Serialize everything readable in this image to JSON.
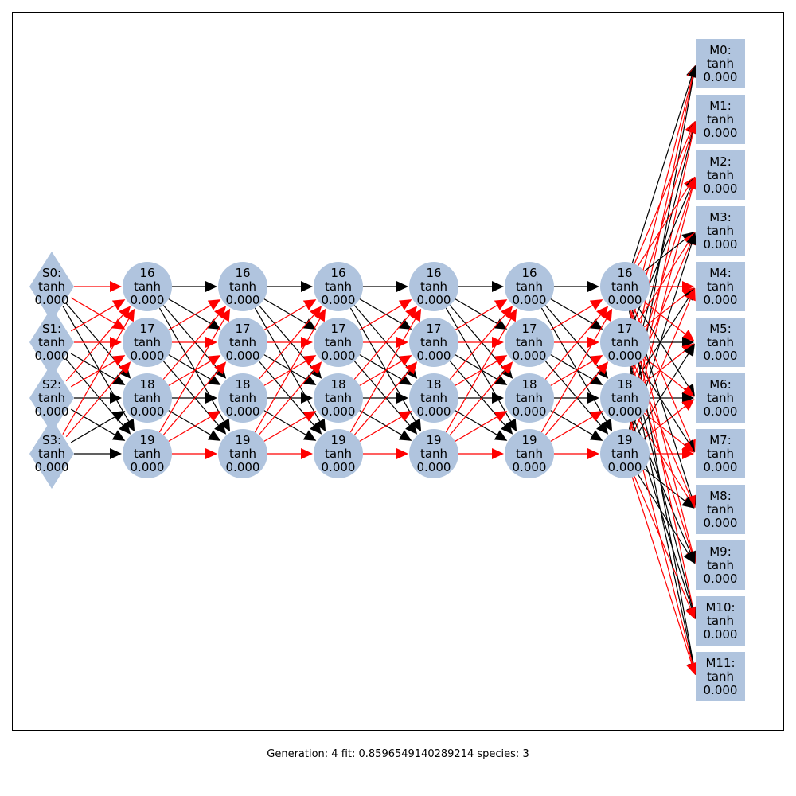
{
  "colors": {
    "node_fill": "#b0c4de",
    "edge_positive": "#000000",
    "edge_negative": "#ff0000",
    "frame": "#000000"
  },
  "network": {
    "sensors": [
      {
        "id": "S0",
        "label": "S0:",
        "activation": "tanh",
        "value": "0.000"
      },
      {
        "id": "S1",
        "label": "S1:",
        "activation": "tanh",
        "value": "0.000"
      },
      {
        "id": "S2",
        "label": "S2:",
        "activation": "tanh",
        "value": "0.000"
      },
      {
        "id": "S3",
        "label": "S3:",
        "activation": "tanh",
        "value": "0.000"
      }
    ],
    "hidden_layers": [
      {
        "nodes": [
          {
            "label": "16",
            "activation": "tanh",
            "value": "0.000"
          },
          {
            "label": "17",
            "activation": "tanh",
            "value": "0.000"
          },
          {
            "label": "18",
            "activation": "tanh",
            "value": "0.000"
          },
          {
            "label": "19",
            "activation": "tanh",
            "value": "0.000"
          }
        ]
      },
      {
        "nodes": [
          {
            "label": "16",
            "activation": "tanh",
            "value": "0.000"
          },
          {
            "label": "17",
            "activation": "tanh",
            "value": "0.000"
          },
          {
            "label": "18",
            "activation": "tanh",
            "value": "0.000"
          },
          {
            "label": "19",
            "activation": "tanh",
            "value": "0.000"
          }
        ]
      },
      {
        "nodes": [
          {
            "label": "16",
            "activation": "tanh",
            "value": "0.000"
          },
          {
            "label": "17",
            "activation": "tanh",
            "value": "0.000"
          },
          {
            "label": "18",
            "activation": "tanh",
            "value": "0.000"
          },
          {
            "label": "19",
            "activation": "tanh",
            "value": "0.000"
          }
        ]
      },
      {
        "nodes": [
          {
            "label": "16",
            "activation": "tanh",
            "value": "0.000"
          },
          {
            "label": "17",
            "activation": "tanh",
            "value": "0.000"
          },
          {
            "label": "18",
            "activation": "tanh",
            "value": "0.000"
          },
          {
            "label": "19",
            "activation": "tanh",
            "value": "0.000"
          }
        ]
      },
      {
        "nodes": [
          {
            "label": "16",
            "activation": "tanh",
            "value": "0.000"
          },
          {
            "label": "17",
            "activation": "tanh",
            "value": "0.000"
          },
          {
            "label": "18",
            "activation": "tanh",
            "value": "0.000"
          },
          {
            "label": "19",
            "activation": "tanh",
            "value": "0.000"
          }
        ]
      },
      {
        "nodes": [
          {
            "label": "16",
            "activation": "tanh",
            "value": "0.000"
          },
          {
            "label": "17",
            "activation": "tanh",
            "value": "0.000"
          },
          {
            "label": "18",
            "activation": "tanh",
            "value": "0.000"
          },
          {
            "label": "19",
            "activation": "tanh",
            "value": "0.000"
          }
        ]
      }
    ],
    "motors": [
      {
        "id": "M0",
        "label": "M0:",
        "activation": "tanh",
        "value": "0.000"
      },
      {
        "id": "M1",
        "label": "M1:",
        "activation": "tanh",
        "value": "0.000"
      },
      {
        "id": "M2",
        "label": "M2:",
        "activation": "tanh",
        "value": "0.000"
      },
      {
        "id": "M3",
        "label": "M3:",
        "activation": "tanh",
        "value": "0.000"
      },
      {
        "id": "M4",
        "label": "M4:",
        "activation": "tanh",
        "value": "0.000"
      },
      {
        "id": "M5",
        "label": "M5:",
        "activation": "tanh",
        "value": "0.000"
      },
      {
        "id": "M6",
        "label": "M6:",
        "activation": "tanh",
        "value": "0.000"
      },
      {
        "id": "M7",
        "label": "M7:",
        "activation": "tanh",
        "value": "0.000"
      },
      {
        "id": "M8",
        "label": "M8:",
        "activation": "tanh",
        "value": "0.000"
      },
      {
        "id": "M9",
        "label": "M9:",
        "activation": "tanh",
        "value": "0.000"
      },
      {
        "id": "M10",
        "label": "M10:",
        "activation": "tanh",
        "value": "0.000"
      },
      {
        "id": "M11",
        "label": "M11:",
        "activation": "tanh",
        "value": "0.000"
      }
    ],
    "input_edges": [
      {
        "from": 0,
        "to": 0,
        "sign": "negative"
      },
      {
        "from": 0,
        "to": 1,
        "sign": "negative"
      },
      {
        "from": 0,
        "to": 2,
        "sign": "positive"
      },
      {
        "from": 0,
        "to": 3,
        "sign": "positive"
      },
      {
        "from": 1,
        "to": 0,
        "sign": "negative"
      },
      {
        "from": 1,
        "to": 1,
        "sign": "negative"
      },
      {
        "from": 1,
        "to": 2,
        "sign": "positive"
      },
      {
        "from": 1,
        "to": 3,
        "sign": "positive"
      },
      {
        "from": 2,
        "to": 0,
        "sign": "negative"
      },
      {
        "from": 2,
        "to": 1,
        "sign": "negative"
      },
      {
        "from": 2,
        "to": 2,
        "sign": "positive"
      },
      {
        "from": 2,
        "to": 3,
        "sign": "positive"
      },
      {
        "from": 3,
        "to": 0,
        "sign": "negative"
      },
      {
        "from": 3,
        "to": 1,
        "sign": "negative"
      },
      {
        "from": 3,
        "to": 2,
        "sign": "positive"
      },
      {
        "from": 3,
        "to": 3,
        "sign": "positive"
      }
    ],
    "hidden_edges": [
      {
        "from": 0,
        "to": 0,
        "sign": "positive"
      },
      {
        "from": 0,
        "to": 1,
        "sign": "positive"
      },
      {
        "from": 0,
        "to": 2,
        "sign": "positive"
      },
      {
        "from": 0,
        "to": 3,
        "sign": "positive"
      },
      {
        "from": 1,
        "to": 0,
        "sign": "negative"
      },
      {
        "from": 1,
        "to": 1,
        "sign": "negative"
      },
      {
        "from": 1,
        "to": 2,
        "sign": "positive"
      },
      {
        "from": 1,
        "to": 3,
        "sign": "positive"
      },
      {
        "from": 2,
        "to": 0,
        "sign": "negative"
      },
      {
        "from": 2,
        "to": 1,
        "sign": "negative"
      },
      {
        "from": 2,
        "to": 2,
        "sign": "positive"
      },
      {
        "from": 2,
        "to": 3,
        "sign": "positive"
      },
      {
        "from": 3,
        "to": 0,
        "sign": "negative"
      },
      {
        "from": 3,
        "to": 1,
        "sign": "negative"
      },
      {
        "from": 3,
        "to": 2,
        "sign": "negative"
      },
      {
        "from": 3,
        "to": 3,
        "sign": "negative"
      }
    ],
    "output_edge_signs": [
      "positive",
      "negative",
      "negative",
      "positive",
      "negative",
      "negative",
      "positive",
      "negative",
      "positive",
      "negative",
      "negative",
      "positive"
    ]
  },
  "caption": {
    "text": "Generation: 4 fit: 0.8596549140289214 species: 3"
  }
}
